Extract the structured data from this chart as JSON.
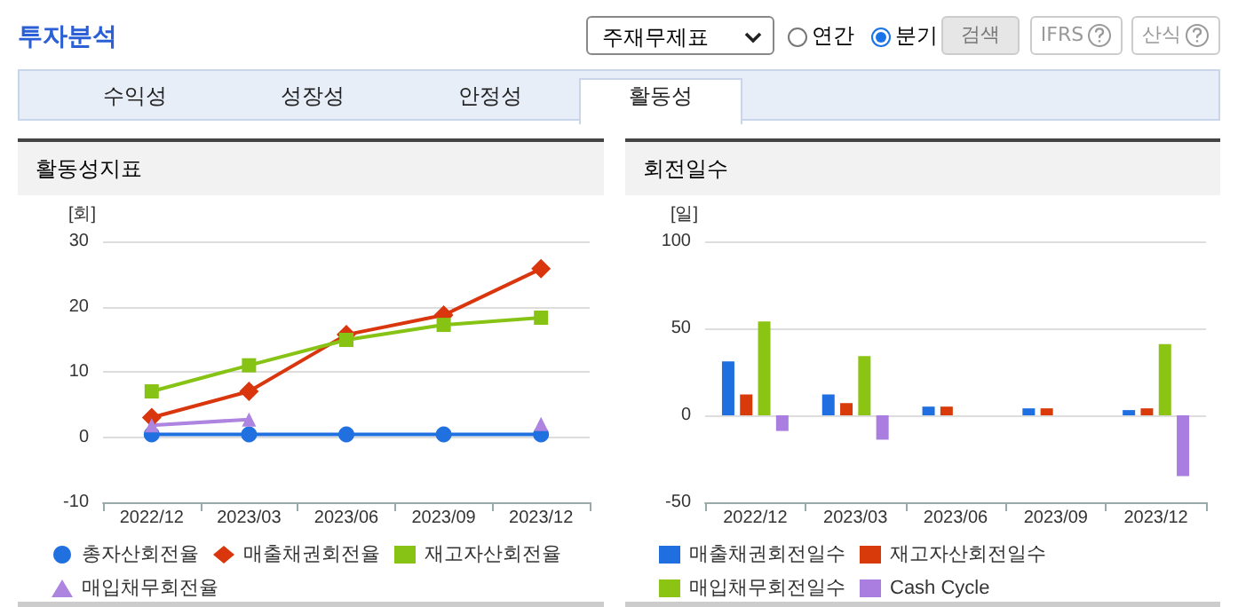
{
  "chart_data": [
    {
      "type": "other",
      "title": "투자분석",
      "annotations": [
        "주재무제표",
        "연간",
        "분기",
        "검색",
        "IFRS",
        "산식",
        "수익성",
        "성장성",
        "안정성",
        "활동성"
      ]
    },
    {
      "type": "line",
      "title": "활동성지표",
      "ylabel": "[회]",
      "categories": [
        "2022/12",
        "2023/03",
        "2023/06",
        "2023/09",
        "2023/12"
      ],
      "ylim": [
        -10,
        30
      ],
      "yticks": [
        -10,
        0,
        10,
        20,
        30
      ],
      "grid": "y",
      "legend": "bottom",
      "line_style": "solid",
      "series": [
        {
          "name": "총자산회전율",
          "color": "#2170e0",
          "marker": "circle",
          "values": [
            0.4,
            0.4,
            0.4,
            0.4,
            0.4
          ]
        },
        {
          "name": "매출채권회전율",
          "color": "#d9360e",
          "marker": "diamond",
          "values": [
            3.0,
            7.0,
            15.7,
            18.7,
            25.8
          ]
        },
        {
          "name": "재고자산회전율",
          "color": "#86c314",
          "marker": "square",
          "values": [
            7.0,
            11.0,
            14.9,
            17.2,
            18.3
          ]
        },
        {
          "name": "매입채무회전율",
          "color": "#ad85e0",
          "marker": "triangle",
          "values": [
            1.8,
            2.7,
            null,
            null,
            2.0
          ]
        }
      ]
    },
    {
      "type": "bar",
      "title": "회전일수",
      "ylabel": "[일]",
      "categories": [
        "2022/12",
        "2023/03",
        "2023/06",
        "2023/09",
        "2023/12"
      ],
      "ylim": [
        -50,
        100
      ],
      "yticks": [
        -50,
        0,
        50,
        100
      ],
      "grid": "y",
      "legend": "bottom",
      "series": [
        {
          "name": "매출채권회전일수",
          "color": "#1f6fe0",
          "values": [
            31,
            12,
            5,
            4,
            3
          ]
        },
        {
          "name": "재고자산회전일수",
          "color": "#d83a0a",
          "values": [
            12,
            7,
            5,
            4,
            4
          ]
        },
        {
          "name": "매입채무회전일수",
          "color": "#8cc414",
          "values": [
            54,
            34,
            null,
            null,
            41
          ]
        },
        {
          "name": "Cash Cycle",
          "color": "#a97ee0",
          "values": [
            -9,
            -14,
            null,
            null,
            -35
          ]
        }
      ]
    }
  ]
}
